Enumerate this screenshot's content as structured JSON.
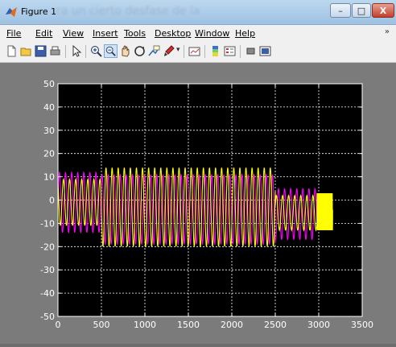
{
  "window": {
    "title": "Figure 1",
    "background_title": "ra un cierto desfase de la",
    "minimize_label": "–",
    "maximize_label": "□",
    "close_label": "X"
  },
  "menu": {
    "items": [
      "File",
      "Edit",
      "View",
      "Insert",
      "Tools",
      "Desktop",
      "Window",
      "Help"
    ],
    "overflow": "»"
  },
  "toolbar": {
    "icons": [
      "new-figure-icon",
      "open-file-icon",
      "save-icon",
      "print-icon",
      "edit-plot-arrow-icon",
      "zoom-in-icon",
      "zoom-out-icon",
      "pan-hand-icon",
      "rotate-3d-icon",
      "data-cursor-icon",
      "brush-icon",
      "link-plot-icon",
      "colorbar-icon",
      "legend-icon",
      "hide-plot-tools-icon",
      "show-plot-tools-icon"
    ]
  },
  "colors": {
    "axes_bg": "#000000",
    "figure_bg": "#7b7b7b",
    "series_yellow": "#ffff00",
    "series_magenta": "#ff00ff"
  },
  "chart_data": {
    "type": "line",
    "title": "",
    "xlabel": "",
    "ylabel": "",
    "xlim": [
      0,
      3500
    ],
    "ylim": [
      -50,
      50
    ],
    "xticks": [
      0,
      500,
      1000,
      1500,
      2000,
      2500,
      3000,
      3500
    ],
    "yticks": [
      -50,
      -40,
      -30,
      -20,
      -10,
      0,
      10,
      20,
      30,
      40,
      50
    ],
    "grid": true,
    "grid_style": "dotted",
    "series": [
      {
        "color": "#ff00ff",
        "style": "oscillating",
        "segments": [
          {
            "x_start": 0,
            "x_end": 500,
            "amplitude_max": 12,
            "amplitude_min": -14,
            "period": 70
          },
          {
            "x_start": 500,
            "x_end": 2500,
            "amplitude_max": 11,
            "amplitude_min": -19,
            "period": 70
          },
          {
            "x_start": 2500,
            "x_end": 2980,
            "amplitude_max": 5,
            "amplitude_min": -17,
            "period": 70
          }
        ]
      },
      {
        "color": "#ffff00",
        "style": "oscillating",
        "segments": [
          {
            "x_start": 0,
            "x_end": 500,
            "amplitude_max": 9,
            "amplitude_min": -11,
            "period": 70
          },
          {
            "x_start": 500,
            "x_end": 2500,
            "amplitude_max": 14,
            "amplitude_min": -20,
            "period": 70
          },
          {
            "x_start": 2500,
            "x_end": 2980,
            "amplitude_max": 2,
            "amplitude_min": -13,
            "period": 70
          },
          {
            "x_start": 2980,
            "x_end": 3160,
            "amplitude_max": 3,
            "amplitude_min": -13,
            "period": 6
          }
        ]
      }
    ]
  }
}
